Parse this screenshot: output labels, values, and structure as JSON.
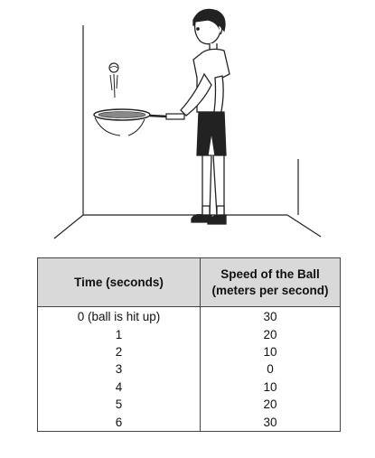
{
  "table": {
    "headers": [
      "Time (seconds)",
      "Speed of the Ball (meters per second)"
    ],
    "rows": [
      [
        "0 (ball is hit up)",
        "30"
      ],
      [
        "1",
        "20"
      ],
      [
        "2",
        "10"
      ],
      [
        "3",
        "0"
      ],
      [
        "4",
        "10"
      ],
      [
        "5",
        "20"
      ],
      [
        "6",
        "30"
      ]
    ]
  }
}
